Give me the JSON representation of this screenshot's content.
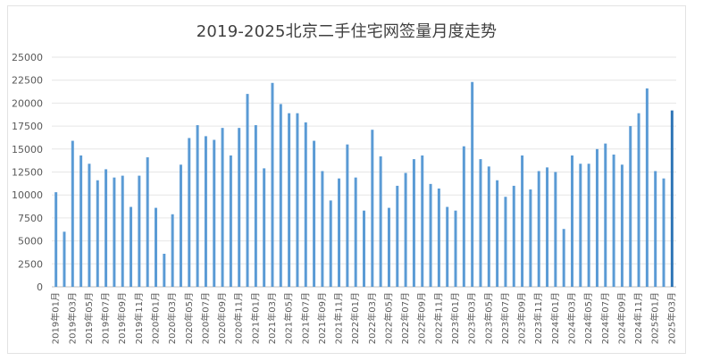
{
  "chart_data": {
    "type": "bar",
    "title": "2019-2025北京二手住宅网签量月度走势",
    "xlabel": "",
    "ylabel": "",
    "ylim": [
      0,
      25000
    ],
    "yticks": [
      0,
      2500,
      5000,
      7500,
      10000,
      12500,
      15000,
      17500,
      20000,
      22500,
      25000
    ],
    "grid": true,
    "legend": "none",
    "bar_color": "#5b9bd5",
    "highlight_color": "#2e75b6",
    "categories": [
      "2019年01月",
      "2019年02月",
      "2019年03月",
      "2019年04月",
      "2019年05月",
      "2019年06月",
      "2019年07月",
      "2019年08月",
      "2019年09月",
      "2019年10月",
      "2019年11月",
      "2019年12月",
      "2020年01月",
      "2020年02月",
      "2020年03月",
      "2020年04月",
      "2020年05月",
      "2020年06月",
      "2020年07月",
      "2020年08月",
      "2020年09月",
      "2020年10月",
      "2020年11月",
      "2020年12月",
      "2021年01月",
      "2021年02月",
      "2021年03月",
      "2021年04月",
      "2021年05月",
      "2021年06月",
      "2021年07月",
      "2021年08月",
      "2021年09月",
      "2021年10月",
      "2021年11月",
      "2021年12月",
      "2022年01月",
      "2022年02月",
      "2022年03月",
      "2022年04月",
      "2022年05月",
      "2022年06月",
      "2022年07月",
      "2022年08月",
      "2022年09月",
      "2022年10月",
      "2022年11月",
      "2022年12月",
      "2023年01月",
      "2023年02月",
      "2023年03月",
      "2023年04月",
      "2023年05月",
      "2023年06月",
      "2023年07月",
      "2023年08月",
      "2023年09月",
      "2023年10月",
      "2023年11月",
      "2023年12月",
      "2024年01月",
      "2024年02月",
      "2024年03月",
      "2024年04月",
      "2024年05月",
      "2024年06月",
      "2024年07月",
      "2024年08月",
      "2024年09月",
      "2024年10月",
      "2024年11月",
      "2024年12月",
      "2025年01月",
      "2025年02月",
      "2025年03月"
    ],
    "xtick_labels": [
      "2019年01月",
      "2019年03月",
      "2019年05月",
      "2019年07月",
      "2019年09月",
      "2019年11月",
      "2020年01月",
      "2020年03月",
      "2020年05月",
      "2020年07月",
      "2020年09月",
      "2020年11月",
      "2021年01月",
      "2021年03月",
      "2021年05月",
      "2021年07月",
      "2021年09月",
      "2021年11月",
      "2022年01月",
      "2022年03月",
      "2022年05月",
      "2022年07月",
      "2022年09月",
      "2022年11月",
      "2023年01月",
      "2023年03月",
      "2023年05月",
      "2023年07月",
      "2023年09月",
      "2023年11月",
      "2024年01月",
      "2024年03月",
      "2024年05月",
      "2024年07月",
      "2024年09月",
      "2024年11月",
      "2025年01月",
      "2025年03月"
    ],
    "values": [
      10300,
      6000,
      15900,
      14300,
      13400,
      11600,
      12800,
      11900,
      12100,
      8700,
      12100,
      14100,
      8600,
      3600,
      7900,
      13300,
      16200,
      17600,
      16400,
      16000,
      17300,
      14300,
      17300,
      21000,
      17600,
      12900,
      22200,
      19900,
      18900,
      18900,
      17900,
      15900,
      12600,
      9400,
      11800,
      15500,
      11900,
      8300,
      17100,
      14200,
      8600,
      11000,
      12400,
      13900,
      14300,
      11200,
      10700,
      8700,
      8300,
      15300,
      22300,
      13900,
      13100,
      11600,
      9800,
      11000,
      14300,
      10600,
      12600,
      13000,
      12500,
      6300,
      14300,
      13400,
      13400,
      15000,
      15600,
      14400,
      13300,
      17500,
      18900,
      21600,
      12600,
      11800,
      19200
    ]
  }
}
